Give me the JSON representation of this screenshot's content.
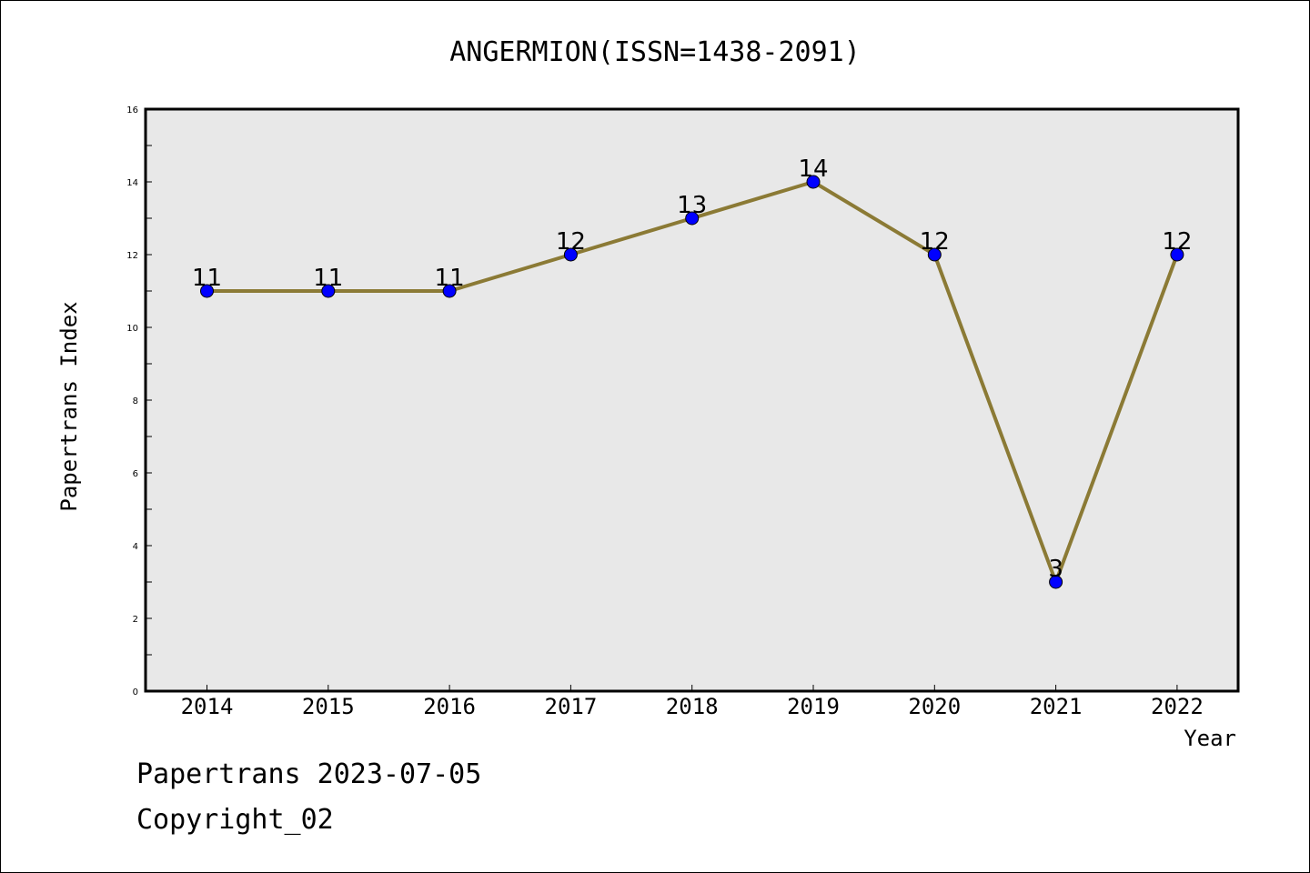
{
  "chart_data": {
    "type": "line",
    "title": "ANGERMION(ISSN=1438-2091)",
    "xlabel": "Year",
    "ylabel": "Papertrans Index",
    "categories": [
      "2014",
      "2015",
      "2016",
      "2017",
      "2018",
      "2019",
      "2020",
      "2021",
      "2022"
    ],
    "series": [
      {
        "values": [
          11,
          11,
          11,
          12,
          13,
          14,
          12,
          3,
          12
        ]
      }
    ],
    "data_labels": [
      "11",
      "11",
      "11",
      "12",
      "13",
      "14",
      "12",
      "3",
      "12"
    ],
    "ylim": [
      0,
      16
    ],
    "yticks": [
      0,
      2,
      4,
      6,
      8,
      10,
      12,
      14,
      16
    ],
    "grid": false,
    "line_color": "#8b7a35",
    "marker_color": "#0000ff",
    "plot_background": "#e8e8e8"
  },
  "footer": {
    "line1": "Papertrans 2023-07-05",
    "line2": "Copyright_02"
  }
}
